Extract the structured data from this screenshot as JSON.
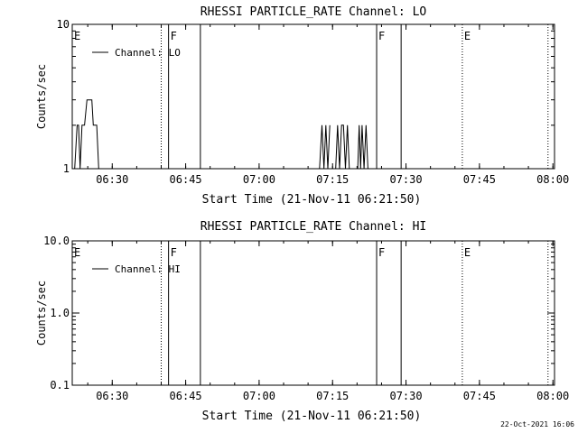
{
  "footer_timestamp": "22-Oct-2021 16:06",
  "chart_data": [
    {
      "type": "line",
      "title": "RHESSI PARTICLE_RATE Channel: LO",
      "xlabel": "Start Time (21-Nov-11 06:21:50)",
      "ylabel": "Counts/sec",
      "x_unit": "minutes after 06:21:50",
      "xlim": [
        0,
        98.5
      ],
      "ylim": [
        1,
        10
      ],
      "yscale": "log",
      "x_ticks": [
        "06:30",
        "06:45",
        "07:00",
        "07:15",
        "07:30",
        "07:45",
        "08:00"
      ],
      "y_ticks": [
        "1",
        "10"
      ],
      "legend": "Channel: LO",
      "legend_position": "top-left",
      "markers": [
        {
          "label": "E",
          "t": 0.0,
          "style": "dotted"
        },
        {
          "label": "",
          "t": 18.17,
          "style": "dotted"
        },
        {
          "label": "F",
          "t": 19.67,
          "style": "solid"
        },
        {
          "label": "",
          "t": 26.17,
          "style": "solid"
        },
        {
          "label": "F",
          "t": 62.17,
          "style": "solid"
        },
        {
          "label": "",
          "t": 67.17,
          "style": "solid"
        },
        {
          "label": "E",
          "t": 79.67,
          "style": "dotted"
        },
        {
          "label": "",
          "t": 97.17,
          "style": "dotted"
        }
      ],
      "series": [
        {
          "x": [
            0.5,
            1.0,
            1.3,
            1.6,
            2.0,
            2.5,
            3.0,
            3.5,
            4.0,
            4.3,
            4.6,
            5.0,
            5.4,
            5.8
          ],
          "y": [
            1,
            2,
            2,
            1,
            2,
            2,
            3,
            3,
            3,
            2,
            2,
            2,
            1,
            1
          ]
        },
        {
          "x": [
            50.5,
            51.0,
            51.4,
            51.8,
            52.2,
            52.6
          ],
          "y": [
            1,
            2,
            1,
            2,
            1,
            2
          ]
        },
        {
          "x": [
            53.8,
            54.2,
            54.6,
            55.0,
            55.4,
            55.8,
            56.2,
            56.6
          ],
          "y": [
            1,
            2,
            1,
            2,
            2,
            1,
            2,
            1
          ]
        },
        {
          "x": [
            58.3,
            58.6,
            58.9,
            59.2,
            59.6,
            60.0,
            60.4
          ],
          "y": [
            1,
            2,
            1,
            2,
            1,
            2,
            1
          ]
        }
      ]
    },
    {
      "type": "line",
      "title": "RHESSI PARTICLE_RATE Channel: HI",
      "xlabel": "Start Time (21-Nov-11 06:21:50)",
      "ylabel": "Counts/sec",
      "x_unit": "minutes after 06:21:50",
      "xlim": [
        0,
        98.5
      ],
      "ylim": [
        0.1,
        10
      ],
      "yscale": "log",
      "x_ticks": [
        "06:30",
        "06:45",
        "07:00",
        "07:15",
        "07:30",
        "07:45",
        "08:00"
      ],
      "y_ticks": [
        "0.1",
        "1.0",
        "10.0"
      ],
      "legend": "Channel: HI",
      "legend_position": "top-left",
      "markers": [
        {
          "label": "E",
          "t": 0.0,
          "style": "dotted"
        },
        {
          "label": "",
          "t": 18.17,
          "style": "dotted"
        },
        {
          "label": "F",
          "t": 19.67,
          "style": "solid"
        },
        {
          "label": "",
          "t": 26.17,
          "style": "solid"
        },
        {
          "label": "F",
          "t": 62.17,
          "style": "solid"
        },
        {
          "label": "",
          "t": 67.17,
          "style": "solid"
        },
        {
          "label": "E",
          "t": 79.67,
          "style": "dotted"
        },
        {
          "label": "",
          "t": 97.17,
          "style": "dotted"
        }
      ],
      "series": []
    }
  ]
}
